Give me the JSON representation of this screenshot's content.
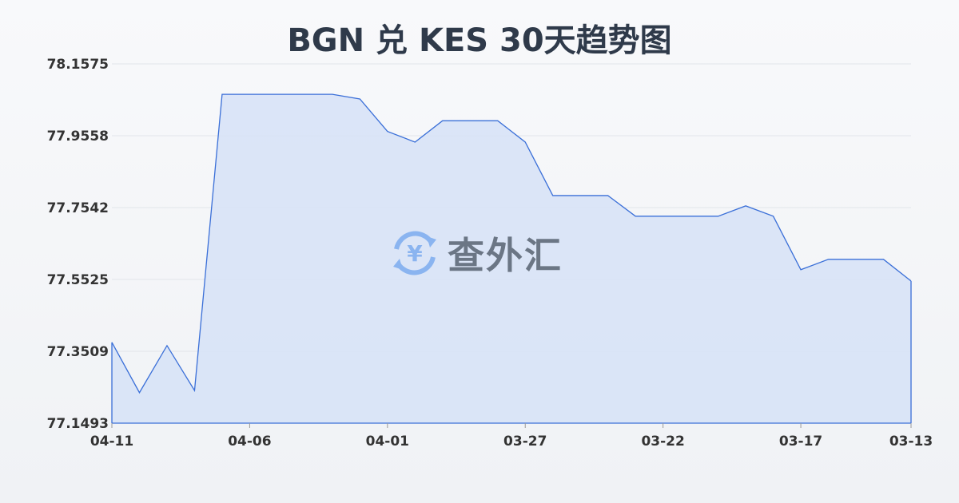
{
  "chart_data": {
    "type": "area",
    "title": "BGN 兑 KES 30天趋势图",
    "xlabel": "",
    "ylabel": "",
    "x": [
      "04-11",
      "04-10",
      "04-09",
      "04-08",
      "04-07",
      "04-06",
      "04-05",
      "04-04",
      "04-03",
      "04-02",
      "04-01",
      "03-31",
      "03-30",
      "03-29",
      "03-28",
      "03-27",
      "03-26",
      "03-25",
      "03-24",
      "03-23",
      "03-22",
      "03-21",
      "03-20",
      "03-19",
      "03-18",
      "03-17",
      "03-16",
      "03-15",
      "03-14",
      "03-13"
    ],
    "values": [
      77.376,
      77.235,
      77.367,
      77.241,
      78.072,
      78.072,
      78.072,
      78.072,
      78.072,
      78.059,
      77.968,
      77.938,
      77.998,
      77.998,
      77.998,
      77.938,
      77.788,
      77.788,
      77.788,
      77.73,
      77.73,
      77.73,
      77.73,
      77.759,
      77.73,
      77.58,
      77.609,
      77.609,
      77.609,
      77.548
    ],
    "x_tick_labels": [
      "04-11",
      "04-06",
      "04-01",
      "03-27",
      "03-22",
      "03-17",
      "03-13"
    ],
    "y_tick_labels": [
      "78.1575",
      "77.9558",
      "77.7542",
      "77.5525",
      "77.3509",
      "77.1493"
    ],
    "ylim": [
      77.1493,
      78.1575
    ],
    "grid": true,
    "line_color": "#3a6fd8",
    "fill_color": "#d6e2f7"
  },
  "watermark": {
    "text": "查外汇",
    "icon": "yuan-exchange-icon",
    "icon_color": "#8ab4f0"
  }
}
